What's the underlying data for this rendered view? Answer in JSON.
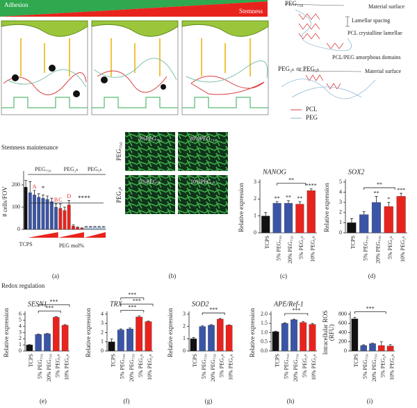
{
  "figure": {
    "gradient": {
      "left": "Adhesion",
      "right": "Stemness"
    },
    "schematic": {
      "peg750": "PEG₇₅₀",
      "surface1": "Material surface",
      "spacing": "Lamellar spacing",
      "lamellae": "PCL crystalline lamellae",
      "amorphous": "PCL/PEG amorphous domains",
      "peg2k": "PEG₂ₖ or PEG₅ₖ",
      "surface2": "Material surface",
      "legend": [
        "PCL",
        "PEG"
      ]
    },
    "sections": [
      "Stemness maintenance",
      "Redox regulation"
    ],
    "micrographs": {
      "panels": [
        "5%PEG₇₅₀",
        "20%PEG₇₅₀",
        "5%PEG₂ₖ",
        "10%PEG₂ₖ"
      ],
      "rows": [
        "PEG₇₅₀",
        "PEG₂ₖ"
      ],
      "label": "(b)"
    }
  },
  "chart_data": [
    {
      "type": "bar",
      "panel": "(a)",
      "ylabel": "# cells/FOV",
      "xlabel": "PEG mol%",
      "categories": [
        "TCPS",
        null,
        null,
        null,
        null,
        null,
        null,
        null,
        null,
        null,
        null,
        null,
        null,
        null,
        null,
        null,
        null,
        null,
        null
      ],
      "values": [
        190,
        165,
        155,
        145,
        140,
        135,
        125,
        100,
        95,
        85,
        110,
        15,
        8,
        5,
        10,
        10,
        10,
        10,
        10
      ],
      "errors": [
        30,
        50,
        20,
        15,
        15,
        15,
        15,
        15,
        20,
        15,
        20,
        5,
        3,
        2,
        3,
        3,
        3,
        3,
        3
      ],
      "colors": [
        "#111111",
        "#3b55a6",
        "#3b55a6",
        "#3b55a6",
        "#3b55a6",
        "#3b55a6",
        "#3b55a6",
        "#3b55a6",
        "#e8231d",
        "#e8231d",
        "#e8231d",
        "#e8231d",
        "#e8231d",
        "#e8231d",
        "#a9c9e6",
        "#a9c9e6",
        "#a9c9e6",
        "#a9c9e6",
        "#a9c9e6"
      ],
      "ylim": [
        0,
        250
      ],
      "yticks": [
        0,
        100,
        200
      ],
      "groups": [
        "PEG₇₅₀",
        "PEG₂ₖ",
        "PEG₅ₖ"
      ],
      "letters": [
        "A",
        "B",
        "C",
        "D"
      ],
      "marks": [
        "*",
        "****"
      ]
    },
    {
      "type": "bar",
      "panel": "(c)",
      "title": "NANOG",
      "ylabel": "Relative expression",
      "categories": [
        "TCPS",
        "5% PEG₇₅₀",
        "20% PEG₇₅₀",
        "5% PEG₂ₖ",
        "10% PEG₂ₖ"
      ],
      "values": [
        1.0,
        1.75,
        1.75,
        1.7,
        2.5
      ],
      "errors": [
        0.2,
        0.1,
        0.15,
        0.15,
        0.1
      ],
      "colors": [
        "#111111",
        "#3b55a6",
        "#3b55a6",
        "#e8231d",
        "#e8231d"
      ],
      "ylim": [
        0,
        3
      ],
      "yticks": [
        0,
        1,
        2,
        3
      ],
      "stars": [
        null,
        "**",
        "**",
        "**",
        "****"
      ],
      "brackets": [
        "**"
      ]
    },
    {
      "type": "bar",
      "panel": "(d)",
      "title": "SOX2",
      "ylabel": "Relative expression",
      "categories": [
        "TCPS",
        "5% PEG₇₅₀",
        "20% PEG₇₅₀",
        "5% PEG₂ₖ",
        "10% PEG₂ₖ"
      ],
      "values": [
        1.0,
        1.8,
        3.0,
        2.6,
        3.6
      ],
      "errors": [
        0.4,
        0.3,
        0.6,
        0.4,
        0.3
      ],
      "colors": [
        "#111111",
        "#3b55a6",
        "#3b55a6",
        "#e8231d",
        "#e8231d"
      ],
      "ylim": [
        0,
        5
      ],
      "yticks": [
        0,
        1,
        2,
        3,
        4,
        5
      ],
      "stars": [
        null,
        null,
        "**",
        "*",
        "***"
      ],
      "brackets": [
        "**"
      ]
    },
    {
      "type": "bar",
      "panel": "(e)",
      "title": "SESN1",
      "ylabel": "Relative expression",
      "categories": [
        "TCPS",
        "5% PEG₇₅₀",
        "20% PEG₇₅₀",
        "5% PEG₂ₖ",
        "10% PEG₂ₖ"
      ],
      "values": [
        1.0,
        2.7,
        2.8,
        5.5,
        4.2
      ],
      "errors": [
        0.05,
        0.05,
        0.05,
        0.1,
        0.1
      ],
      "colors": [
        "#111111",
        "#3b55a6",
        "#3b55a6",
        "#e8231d",
        "#e8231d"
      ],
      "ylim": [
        0,
        6
      ],
      "yticks": [
        0,
        1,
        2,
        3,
        4,
        5,
        6
      ],
      "brackets": [
        "***",
        "***"
      ]
    },
    {
      "type": "bar",
      "panel": "(f)",
      "title": "TRX",
      "ylabel": "Relative expression",
      "categories": [
        "TCPS",
        "5% PEG₇₅₀",
        "20% PEG₇₅₀",
        "5% PEG₂ₖ",
        "10% PEG₂ₖ"
      ],
      "values": [
        1.0,
        2.3,
        2.4,
        3.7,
        3.2
      ],
      "errors": [
        0.3,
        0.1,
        0.1,
        0.1,
        0.05
      ],
      "colors": [
        "#111111",
        "#3b55a6",
        "#3b55a6",
        "#e8231d",
        "#e8231d"
      ],
      "ylim": [
        0,
        4
      ],
      "yticks": [
        0,
        1,
        2,
        3,
        4
      ],
      "brackets": [
        "***",
        "***",
        "***"
      ]
    },
    {
      "type": "bar",
      "panel": "(g)",
      "title": "SOD2",
      "ylabel": "Relative expression",
      "categories": [
        "TCPS",
        "5% PEG₇₅₀",
        "20% PEG₇₅₀",
        "5% PEG₂ₖ",
        "10% PEG₂ₖ"
      ],
      "values": [
        1.0,
        2.0,
        2.1,
        2.6,
        2.1
      ],
      "errors": [
        0.1,
        0.05,
        0.05,
        0.05,
        0.03
      ],
      "colors": [
        "#111111",
        "#3b55a6",
        "#3b55a6",
        "#e8231d",
        "#e8231d"
      ],
      "ylim": [
        0,
        3
      ],
      "yticks": [
        0,
        1,
        2,
        3
      ],
      "brackets": [
        "***"
      ]
    },
    {
      "type": "bar",
      "panel": "(h)",
      "title": "APE/Ref-1",
      "ylabel": "Relative expression",
      "categories": [
        "TCPS",
        "5% PEG₇₅₀",
        "20% PEG₇₅₀",
        "5% PEG₂ₖ",
        "10% PEG₂ₖ"
      ],
      "values": [
        1.05,
        1.5,
        1.7,
        1.55,
        1.45
      ],
      "errors": [
        0.03,
        0.03,
        0.03,
        0.05,
        0.05
      ],
      "colors": [
        "#111111",
        "#3b55a6",
        "#3b55a6",
        "#e8231d",
        "#e8231d"
      ],
      "ylim": [
        0,
        2
      ],
      "yticks": [
        {
          "value": 0,
          "label": "0.0"
        },
        {
          "value": 0.5,
          "label": "0.5"
        },
        {
          "value": 1,
          "label": "1.0"
        },
        {
          "value": 1.5,
          "label": "1.5"
        },
        {
          "value": 2,
          "label": "2.0"
        }
      ],
      "brackets": [
        "***"
      ]
    },
    {
      "type": "bar",
      "panel": "(i)",
      "ylabel": [
        "Intracellular ROS",
        "(RFU)"
      ],
      "categories": [
        "TCPS",
        "5% PEG₇₅₀",
        "20% PEG₇₅₀",
        "5% PEG₂ₖ",
        "10% PEG₂ₖ"
      ],
      "values": [
        700,
        120,
        160,
        120,
        110
      ],
      "errors": [
        30,
        15,
        10,
        80,
        30
      ],
      "colors": [
        "#111111",
        "#3b55a6",
        "#3b55a6",
        "#e8231d",
        "#e8231d"
      ],
      "ylim": [
        0,
        800
      ],
      "yticks": [
        0,
        200,
        400,
        600,
        800
      ],
      "brackets": [
        "***"
      ]
    }
  ]
}
